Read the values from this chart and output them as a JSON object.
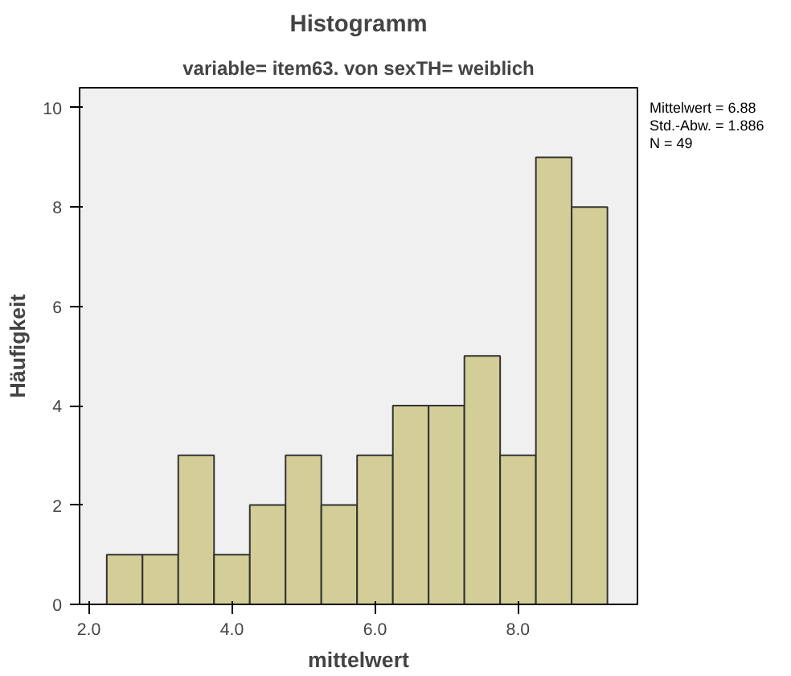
{
  "chart_data": {
    "type": "histogram",
    "title": "Histogramm",
    "subtitle": "variable= item63. von sexTH= weiblich",
    "xlabel": "mittelwert",
    "ylabel": "Häufigkeit",
    "bins": [
      2.25,
      2.75,
      3.25,
      3.75,
      4.25,
      4.75,
      5.25,
      5.75,
      6.25,
      6.75,
      7.25,
      7.75,
      8.25,
      8.75,
      9.25
    ],
    "values": [
      1,
      1,
      3,
      1,
      2,
      3,
      2,
      3,
      4,
      4,
      5,
      3,
      9,
      8
    ],
    "color": "#d3ce97",
    "xlim": [
      1.87,
      9.67
    ],
    "xticks": [
      {
        "value": 2,
        "label": "2.0"
      },
      {
        "value": 4,
        "label": "4.0"
      },
      {
        "value": 6,
        "label": "6.0"
      },
      {
        "value": 8,
        "label": "8.0"
      }
    ],
    "ylim": [
      0,
      10.4
    ],
    "yticks": [
      0,
      2,
      4,
      6,
      8,
      10
    ],
    "annotations": [
      "Mittelwert = 6.88",
      "Std.-Abw. = 1.886",
      "N = 49"
    ],
    "grid": false
  }
}
